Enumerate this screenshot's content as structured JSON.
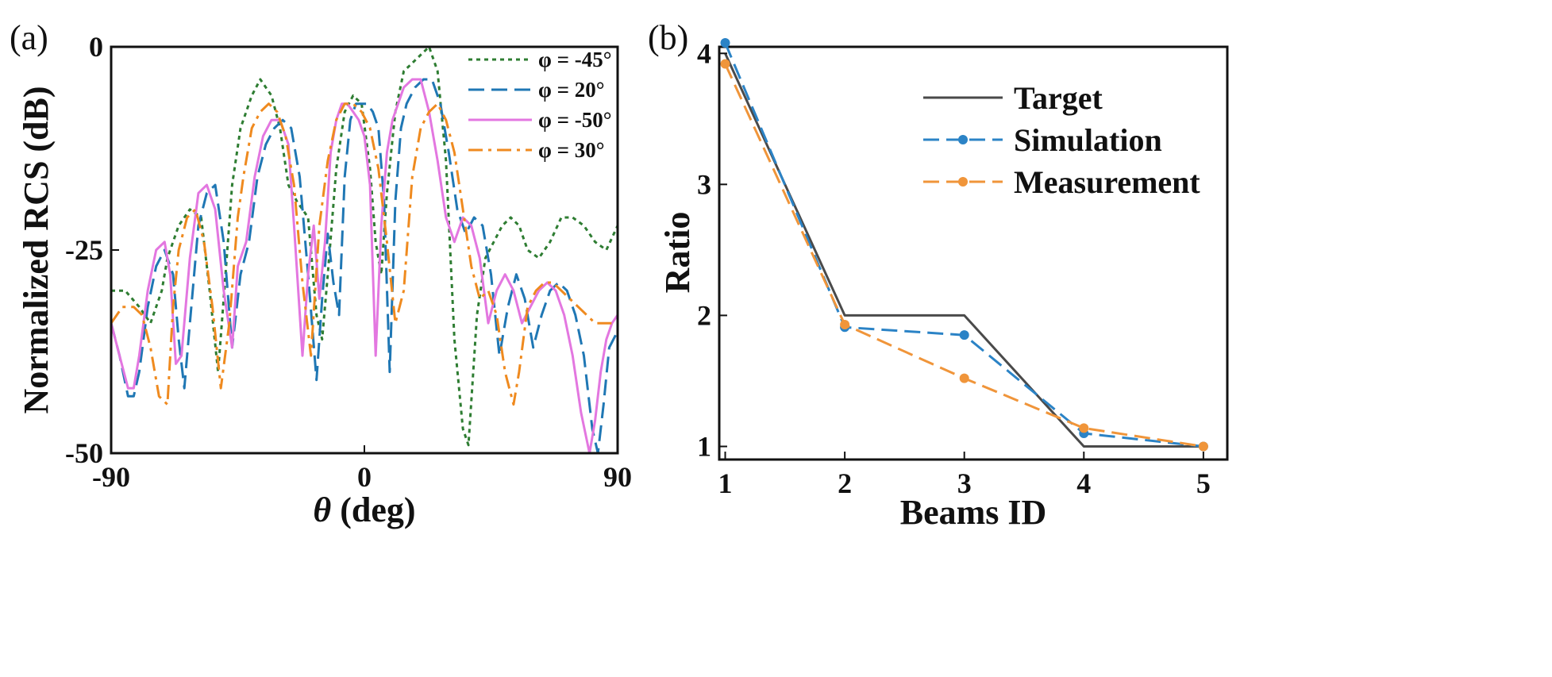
{
  "chart_data": [
    {
      "type": "line",
      "panel_label": "(a)",
      "xlabel_symbol": "θ",
      "xlabel_text": " (deg)",
      "ylabel": "Normalized RCS (dB)",
      "xlim": [
        -90,
        90
      ],
      "ylim": [
        -50,
        0
      ],
      "xticks": [
        -90,
        0,
        90
      ],
      "yticks": [
        0,
        -25,
        -50
      ],
      "legend_position": "top-right",
      "series": [
        {
          "name": "φ = -45°",
          "color": "#2e7d32",
          "style": "dotted",
          "x": [
            -90,
            -85,
            -80,
            -76,
            -72,
            -70,
            -66,
            -62,
            -58,
            -55,
            -52,
            -50,
            -47,
            -44,
            -40,
            -37,
            -33,
            -30,
            -27,
            -24,
            -20,
            -17,
            -15,
            -13,
            -10,
            -7,
            -4,
            -1,
            2,
            4,
            6,
            8,
            11,
            14,
            17,
            20,
            23,
            26,
            29,
            32,
            35,
            37,
            40,
            43,
            46,
            49,
            52,
            55,
            58,
            62,
            66,
            70,
            74,
            78,
            82,
            86,
            90
          ],
          "y": [
            -30,
            -30,
            -32,
            -34,
            -30,
            -26,
            -22,
            -20,
            -21,
            -30,
            -40,
            -31,
            -17,
            -10,
            -6,
            -4,
            -6,
            -10,
            -17,
            -19,
            -21,
            -33,
            -36,
            -28,
            -15,
            -8,
            -6,
            -7,
            -15,
            -24,
            -28,
            -18,
            -8,
            -3,
            -2,
            -1,
            0,
            -3,
            -14,
            -36,
            -47,
            -49,
            -33,
            -26,
            -24,
            -22,
            -21,
            -22,
            -25,
            -26,
            -24,
            -21,
            -21,
            -22,
            -24,
            -25,
            -22
          ]
        },
        {
          "name": "φ = 20°",
          "color": "#1f77b4",
          "style": "dashed",
          "x": [
            -90,
            -87,
            -84,
            -82,
            -80,
            -77,
            -74,
            -71,
            -68,
            -66,
            -64,
            -62,
            -59,
            -56,
            -53,
            -50,
            -47,
            -44,
            -41,
            -38,
            -35,
            -32,
            -29,
            -26,
            -23,
            -20,
            -17,
            -15,
            -13,
            -11,
            -9,
            -7,
            -5,
            -3,
            -1,
            1,
            3,
            5,
            7,
            9,
            11,
            13,
            15,
            18,
            21,
            24,
            27,
            30,
            33,
            36,
            39,
            42,
            45,
            48,
            51,
            54,
            57,
            60,
            63,
            66,
            69,
            72,
            75,
            78,
            81,
            83,
            85,
            87,
            90
          ],
          "y": [
            -34,
            -38,
            -43,
            -43,
            -40,
            -32,
            -27,
            -25,
            -28,
            -36,
            -42,
            -34,
            -22,
            -18,
            -17,
            -24,
            -37,
            -28,
            -24,
            -16,
            -12,
            -10,
            -9,
            -10,
            -16,
            -28,
            -41,
            -31,
            -23,
            -29,
            -33,
            -16,
            -9,
            -7,
            -7,
            -7,
            -8,
            -10,
            -19,
            -40,
            -19,
            -10,
            -7,
            -5,
            -4,
            -4,
            -7,
            -13,
            -20,
            -23,
            -21,
            -22,
            -28,
            -38,
            -32,
            -28,
            -31,
            -37,
            -33,
            -30,
            -29,
            -30,
            -33,
            -38,
            -47,
            -50,
            -44,
            -37,
            -35
          ]
        },
        {
          "name": "φ = -50°",
          "color": "#e377e0",
          "style": "solid",
          "x": [
            -90,
            -87,
            -84,
            -82,
            -80,
            -77,
            -74,
            -71,
            -69,
            -67,
            -65,
            -62,
            -59,
            -56,
            -53,
            -50,
            -47,
            -45,
            -42,
            -39,
            -36,
            -33,
            -30,
            -27,
            -25,
            -22,
            -20,
            -18,
            -16,
            -14,
            -12,
            -10,
            -8,
            -6,
            -4,
            -2,
            0,
            2,
            4,
            6,
            8,
            10,
            12,
            14,
            17,
            20,
            23,
            26,
            29,
            32,
            35,
            38,
            41,
            44,
            47,
            50,
            53,
            56,
            59,
            62,
            65,
            68,
            71,
            74,
            77,
            80,
            82,
            84,
            86,
            88,
            90
          ],
          "y": [
            -34,
            -38,
            -42,
            -42,
            -38,
            -30,
            -25,
            -24,
            -28,
            -39,
            -38,
            -26,
            -18,
            -17,
            -20,
            -30,
            -37,
            -27,
            -24,
            -16,
            -11,
            -9,
            -9,
            -12,
            -22,
            -38,
            -28,
            -22,
            -31,
            -24,
            -13,
            -9,
            -7,
            -7,
            -8,
            -9,
            -11,
            -17,
            -38,
            -22,
            -13,
            -9,
            -7,
            -5,
            -4,
            -4,
            -8,
            -14,
            -21,
            -24,
            -21,
            -22,
            -26,
            -34,
            -30,
            -28,
            -30,
            -34,
            -32,
            -30,
            -29,
            -30,
            -33,
            -38,
            -45,
            -50,
            -46,
            -40,
            -36,
            -34,
            -33
          ]
        },
        {
          "name": "φ = 30°",
          "color": "#ef8a1f",
          "style": "dashdot",
          "x": [
            -90,
            -86,
            -82,
            -79,
            -76,
            -73,
            -70,
            -68,
            -66,
            -63,
            -60,
            -57,
            -54,
            -51,
            -48,
            -45,
            -43,
            -40,
            -37,
            -34,
            -31,
            -28,
            -25,
            -22,
            -19,
            -16,
            -13,
            -10,
            -7,
            -4,
            -1,
            2,
            5,
            8,
            11,
            14,
            17,
            20,
            23,
            26,
            29,
            32,
            35,
            38,
            41,
            44,
            47,
            50,
            53,
            55,
            58,
            61,
            64,
            67,
            70,
            73,
            76,
            79,
            82,
            85,
            88,
            90
          ],
          "y": [
            -34,
            -32,
            -32,
            -33,
            -37,
            -43,
            -44,
            -32,
            -25,
            -21,
            -20,
            -24,
            -32,
            -42,
            -34,
            -21,
            -16,
            -10,
            -8,
            -7,
            -8,
            -11,
            -17,
            -29,
            -38,
            -22,
            -14,
            -9,
            -7,
            -7,
            -8,
            -10,
            -15,
            -24,
            -34,
            -30,
            -16,
            -10,
            -8,
            -7,
            -9,
            -13,
            -20,
            -27,
            -31,
            -30,
            -33,
            -40,
            -44,
            -40,
            -32,
            -30,
            -29,
            -29,
            -30,
            -31,
            -32,
            -33,
            -34,
            -34,
            -34,
            -34
          ]
        }
      ]
    },
    {
      "type": "line",
      "panel_label": "(b)",
      "xlabel": "Beams ID",
      "ylabel": "Ratio",
      "xlim": [
        0.95,
        5.2
      ],
      "ylim": [
        0.9,
        4.05
      ],
      "xticks": [
        1,
        2,
        3,
        4,
        5
      ],
      "yticks": [
        1,
        2,
        3,
        4
      ],
      "legend_position": "top-right",
      "series": [
        {
          "name": "Target",
          "color": "#4a4a4a",
          "style": "solid",
          "markers": false,
          "x": [
            1,
            2,
            3,
            4,
            5
          ],
          "y": [
            4,
            2,
            2,
            1,
            1
          ]
        },
        {
          "name": "Simulation",
          "color": "#2b83c6",
          "style": "dashed",
          "markers": true,
          "x": [
            1,
            2,
            3,
            4,
            5
          ],
          "y": [
            4.08,
            1.91,
            1.85,
            1.1,
            1.0
          ]
        },
        {
          "name": "Measurement",
          "color": "#f0953a",
          "style": "dashed",
          "markers": true,
          "x": [
            1,
            2,
            3,
            4,
            5
          ],
          "y": [
            3.92,
            1.93,
            1.52,
            1.14,
            1.0
          ]
        }
      ]
    }
  ]
}
